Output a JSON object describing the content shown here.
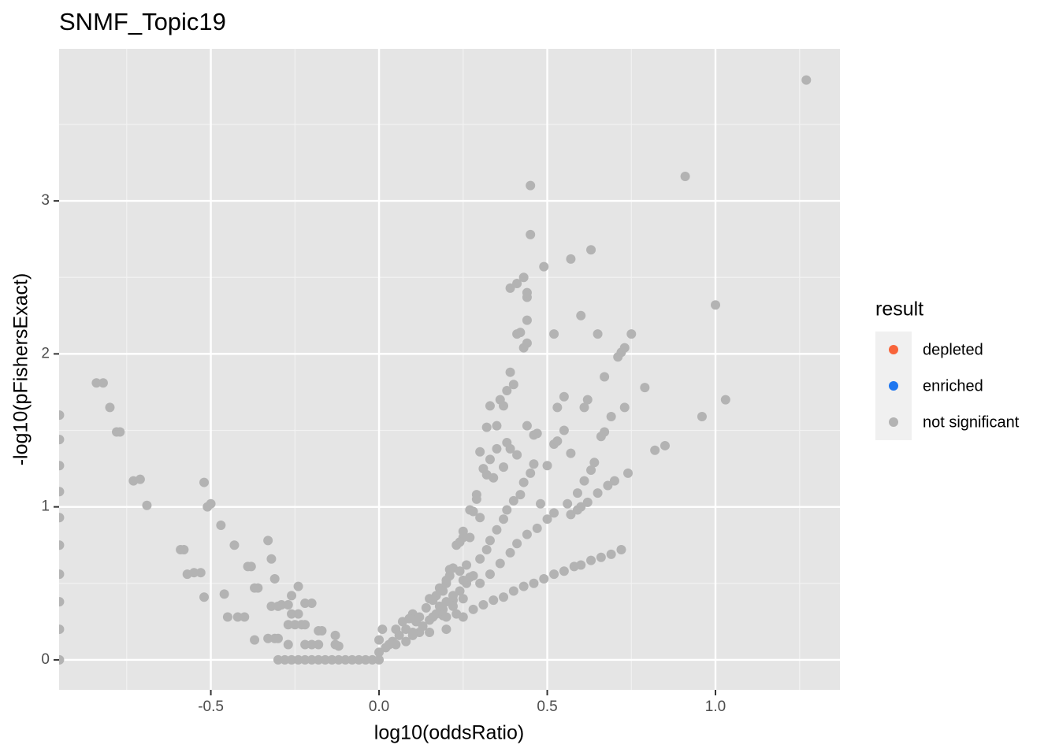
{
  "chart_data": {
    "type": "scatter",
    "title": "SNMF_Topic19",
    "x_label": "log10(oddsRatio)",
    "y_label": "-log10(pFishersExact)",
    "xlim": [
      -0.951,
      1.37
    ],
    "ylim": [
      -0.196,
      3.994
    ],
    "xticks": [
      -0.5,
      {
        "value": 0.0,
        "label": "0.0"
      },
      0.5,
      {
        "value": 1.0,
        "label": "1.0"
      }
    ],
    "yticks": [
      0,
      1,
      2,
      3
    ],
    "grid": true,
    "legend_title": "result",
    "legend_position": "right",
    "series": [
      {
        "name": "depleted",
        "color": "#f8643a",
        "x": [],
        "y": []
      },
      {
        "name": "enriched",
        "color": "#1f77f0",
        "x": [],
        "y": []
      },
      {
        "name": "not significant",
        "color": "#b3b3b3",
        "x": [
          -0.95,
          -0.95,
          -0.95,
          -0.95,
          -0.95,
          -0.95,
          -0.95,
          -0.95,
          -0.95,
          -0.95,
          -0.84,
          -0.82,
          -0.8,
          -0.78,
          -0.77,
          -0.73,
          -0.71,
          -0.69,
          -0.59,
          -0.58,
          -0.52,
          -0.51,
          -0.5,
          -0.47,
          -0.55,
          -0.53,
          -0.57,
          -0.52,
          -0.46,
          -0.45,
          -0.42,
          -0.4,
          -0.43,
          -0.39,
          -0.38,
          -0.36,
          -0.37,
          -0.33,
          -0.32,
          -0.31,
          -0.3,
          -0.32,
          -0.29,
          -0.27,
          -0.37,
          -0.33,
          -0.31,
          -0.3,
          -0.26,
          -0.24,
          -0.26,
          -0.24,
          -0.22,
          -0.2,
          -0.25,
          -0.23,
          -0.27,
          -0.22,
          -0.18,
          -0.17,
          -0.13,
          -0.22,
          -0.2,
          -0.18,
          -0.13,
          -0.12,
          -0.27,
          -0.3,
          -0.28,
          -0.26,
          -0.24,
          -0.22,
          -0.2,
          -0.18,
          -0.16,
          -0.14,
          -0.12,
          -0.1,
          -0.08,
          -0.06,
          -0.04,
          -0.02,
          0.0,
          0.05,
          0.1,
          0.15,
          0.2,
          0.23,
          0.25,
          0.27,
          0.29,
          0.31,
          0.32,
          0.33,
          0.35,
          0.36,
          0.37,
          0.38,
          0.39,
          0.4,
          0.41,
          0.42,
          0.39,
          0.41,
          0.43,
          0.44,
          0.44,
          0.44,
          0.44,
          0.43,
          0.45,
          0.45,
          0.49,
          0.38,
          0.41,
          0.44,
          0.46,
          0.47,
          0.39,
          0.35,
          0.37,
          0.33,
          0.3,
          0.32,
          0.34,
          0.29,
          0.28,
          0.3,
          0.27,
          0.25,
          0.24,
          0.22,
          0.21,
          0.2,
          0.18,
          0.17,
          0.16,
          0.14,
          0.12,
          0.11,
          0.08,
          0.06,
          0.04,
          0.02,
          0.33,
          0.35,
          0.37,
          0.38,
          0.4,
          0.42,
          0.43,
          0.45,
          0.46,
          0.48,
          0.5,
          0.52,
          0.53,
          0.55,
          0.57,
          0.53,
          0.55,
          0.52,
          0.61,
          0.62,
          0.6,
          0.65,
          0.67,
          0.57,
          0.63,
          0.3,
          0.32,
          0.28,
          0.26,
          0.24,
          0.22,
          0.19,
          0.17,
          0.15,
          0.3,
          0.33,
          0.36,
          0.39,
          0.41,
          0.44,
          0.47,
          0.5,
          0.52,
          0.56,
          0.59,
          0.61,
          0.63,
          0.64,
          0.66,
          0.67,
          0.69,
          0.71,
          0.72,
          0.73,
          0.75,
          0.73,
          0.74,
          0.79,
          0.82,
          0.85,
          0.57,
          0.59,
          0.6,
          0.62,
          0.65,
          0.68,
          0.7,
          0.25,
          0.22,
          0.19,
          0.15,
          0.2,
          0.25,
          0.28,
          0.31,
          0.34,
          0.37,
          0.4,
          0.43,
          0.46,
          0.49,
          0.52,
          0.55,
          0.58,
          0.6,
          0.63,
          0.66,
          0.69,
          0.72,
          0.12,
          0.1,
          0.08,
          0.91,
          1.0,
          0.96,
          1.03,
          1.27,
          0.0,
          0.0,
          0.01,
          0.03,
          0.05,
          0.07,
          0.09,
          0.1,
          0.13,
          0.16,
          0.18,
          0.2,
          0.22,
          0.25,
          0.27,
          0.26,
          0.24,
          0.21,
          0.19,
          0.23,
          0.2
        ],
        "y": [
          1.6,
          1.44,
          1.27,
          1.1,
          0.93,
          0.75,
          0.56,
          0.38,
          0.2,
          0.0,
          1.81,
          1.81,
          1.65,
          1.49,
          1.49,
          1.17,
          1.18,
          1.01,
          0.72,
          0.72,
          1.16,
          1.0,
          1.02,
          0.88,
          0.57,
          0.57,
          0.56,
          0.41,
          0.43,
          0.28,
          0.28,
          0.28,
          0.75,
          0.61,
          0.61,
          0.47,
          0.47,
          0.78,
          0.66,
          0.53,
          0.35,
          0.35,
          0.36,
          0.36,
          0.13,
          0.14,
          0.14,
          0.14,
          0.42,
          0.48,
          0.3,
          0.3,
          0.37,
          0.37,
          0.23,
          0.23,
          0.23,
          0.23,
          0.19,
          0.19,
          0.16,
          0.1,
          0.1,
          0.1,
          0.1,
          0.09,
          0.1,
          0,
          0,
          0,
          0,
          0,
          0,
          0,
          0,
          0,
          0,
          0,
          0,
          0,
          0,
          0,
          0,
          0.2,
          0.3,
          0.4,
          0.5,
          0.75,
          0.8,
          0.98,
          1.08,
          1.25,
          1.52,
          1.66,
          1.53,
          1.7,
          1.66,
          1.42,
          1.88,
          1.8,
          2.13,
          2.14,
          2.43,
          2.46,
          2.5,
          2.37,
          2.4,
          2.22,
          2.07,
          2.04,
          2.78,
          3.1,
          2.57,
          1.76,
          1.34,
          1.53,
          1.47,
          1.48,
          1.38,
          1.38,
          1.26,
          1.31,
          1.36,
          1.21,
          1.19,
          1.05,
          0.97,
          0.93,
          0.8,
          0.84,
          0.77,
          0.6,
          0.59,
          0.52,
          0.47,
          0.42,
          0.39,
          0.34,
          0.28,
          0.25,
          0.2,
          0.16,
          0.12,
          0.08,
          0.78,
          0.85,
          0.92,
          0.98,
          1.04,
          1.08,
          1.16,
          1.22,
          1.28,
          1.02,
          1.27,
          1.41,
          1.43,
          1.5,
          1.35,
          1.65,
          1.72,
          2.13,
          1.65,
          1.7,
          2.25,
          2.13,
          1.85,
          2.62,
          2.68,
          0.66,
          0.72,
          0.55,
          0.5,
          0.45,
          0.39,
          0.33,
          0.3,
          0.26,
          0.5,
          0.56,
          0.63,
          0.7,
          0.76,
          0.82,
          0.86,
          0.92,
          0.96,
          1.02,
          1.09,
          1.17,
          1.24,
          1.29,
          1.46,
          1.49,
          1.59,
          1.98,
          2.01,
          2.04,
          2.13,
          1.65,
          1.22,
          1.78,
          1.37,
          1.4,
          0.95,
          0.98,
          1.0,
          1.03,
          1.09,
          1.14,
          1.17,
          0.4,
          0.35,
          0.29,
          0.18,
          0.2,
          0.28,
          0.33,
          0.36,
          0.39,
          0.41,
          0.45,
          0.48,
          0.5,
          0.53,
          0.56,
          0.58,
          0.61,
          0.62,
          0.65,
          0.67,
          0.69,
          0.72,
          0.18,
          0.16,
          0.12,
          3.16,
          2.32,
          1.59,
          1.7,
          3.79,
          0.13,
          0.05,
          0.2,
          0.1,
          0.1,
          0.25,
          0.27,
          0.18,
          0.22,
          0.28,
          0.35,
          0.38,
          0.42,
          0.52,
          0.54,
          0.62,
          0.58,
          0.55,
          0.45,
          0.3,
          0.28
        ]
      }
    ]
  }
}
